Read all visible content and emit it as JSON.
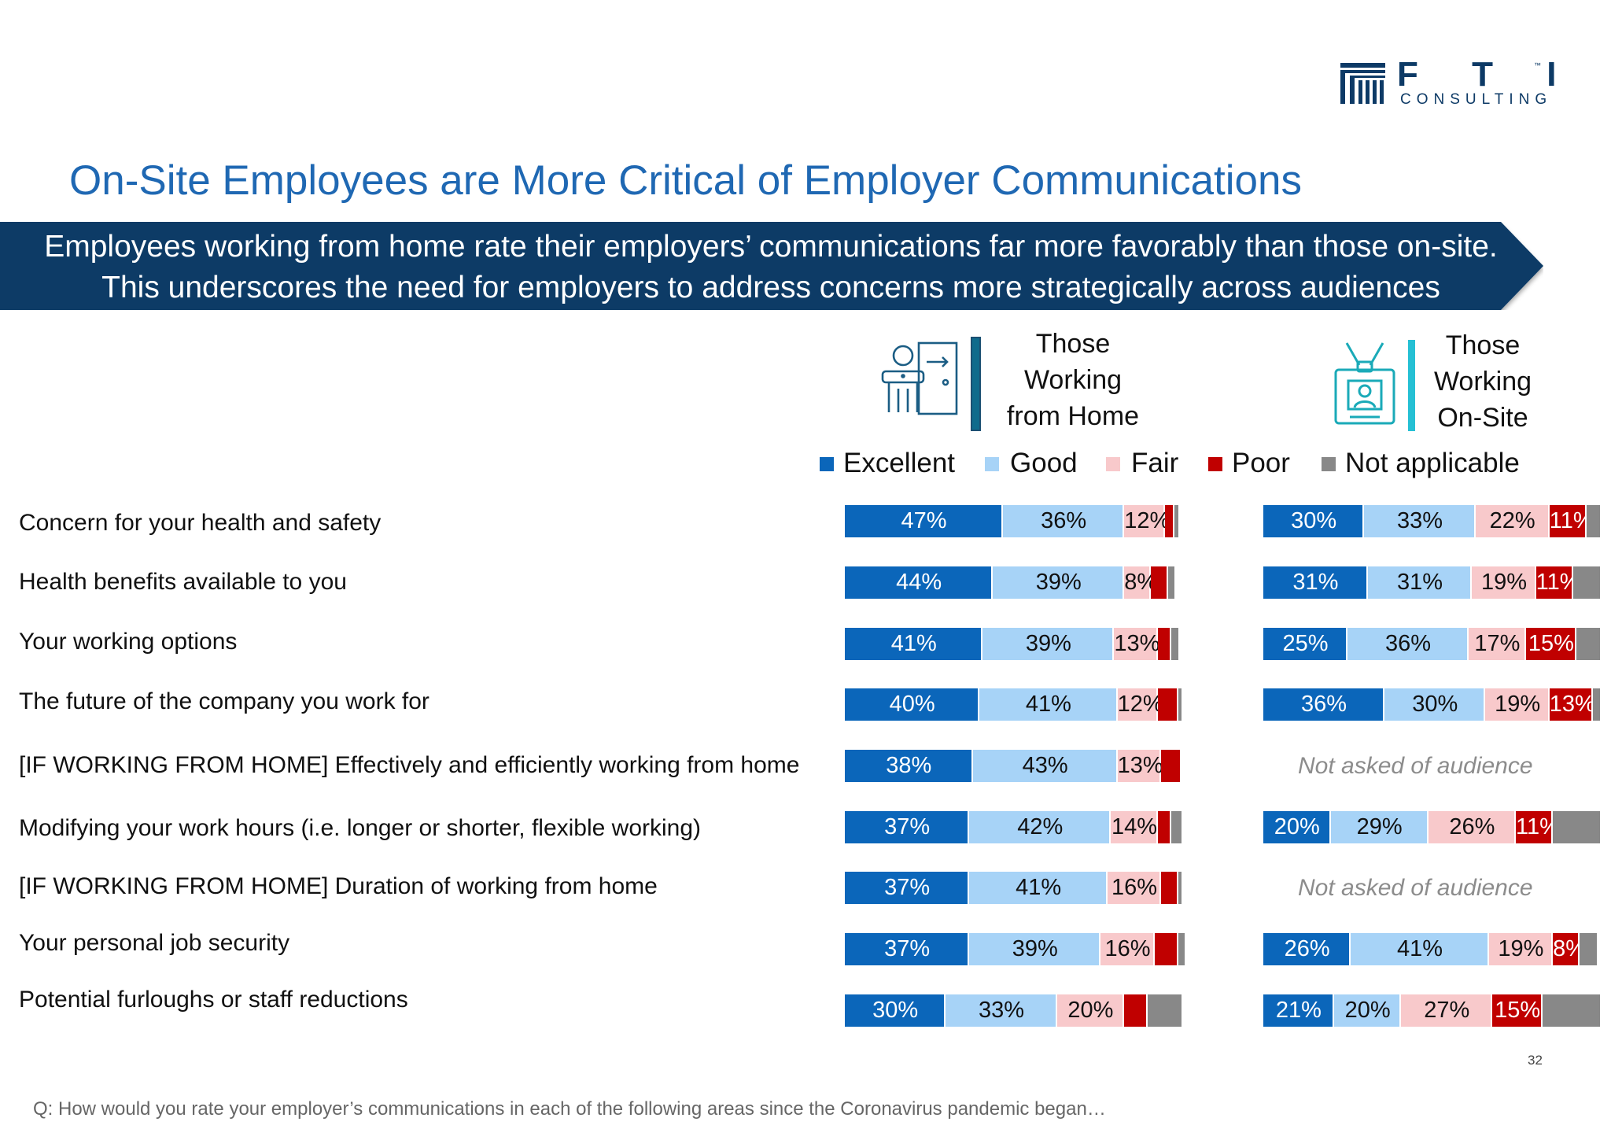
{
  "logo": {
    "letters": "F T I",
    "tm": "™",
    "sub": "CONSULTING"
  },
  "title": "On-Site Employees are More Critical of Employer Communications",
  "banner": "Employees working from home rate their employers’ communications far more favorably than those on-site. This underscores the need for employers to address concerns more strategically across audiences",
  "groups": {
    "home": {
      "label": "Those Working from Home",
      "accent": "#0f6b8c",
      "icon": "person-at-desk-icon"
    },
    "onsite": {
      "label": "Those Working On-Site",
      "accent": "#25c0d4",
      "icon": "id-badge-icon"
    }
  },
  "colors": {
    "Excellent": "#0b66ba",
    "Good": "#a7d3f7",
    "Fair": "#f8c9cb",
    "Poor": "#c00000",
    "Not applicable": "#888888"
  },
  "page_number": "32",
  "footnote": "Q: How would you rate your employer’s communications in each of the following areas since the Coronavirus pandemic began…",
  "chart_data": [
    {
      "type": "bar",
      "orientation": "horizontal",
      "stacked": true,
      "group": "Those Working from Home",
      "legend": [
        "Excellent",
        "Good",
        "Fair",
        "Poor",
        "Not applicable"
      ],
      "legend_position": "top",
      "xlim": [
        0,
        100
      ],
      "categories": [
        "Concern for your health and safety",
        "Health benefits available to you",
        "Your working options",
        "The future of the company you work for",
        "[IF WORKING FROM HOME] Effectively and efficiently working from home",
        "Modifying your work hours (i.e. longer or shorter, flexible working)",
        "[IF WORKING FROM HOME] Duration of working from home",
        "Your personal job security",
        "Potential furloughs or staff reductions"
      ],
      "labels": [
        [
          "47%",
          "36%",
          "12%",
          "",
          ""
        ],
        [
          "44%",
          "39%",
          "8%",
          "",
          ""
        ],
        [
          "41%",
          "39%",
          "13%",
          "",
          ""
        ],
        [
          "40%",
          "41%",
          "12%",
          "",
          ""
        ],
        [
          "38%",
          "43%",
          "13%",
          "",
          ""
        ],
        [
          "37%",
          "42%",
          "14%",
          "",
          ""
        ],
        [
          "37%",
          "41%",
          "16%",
          "",
          ""
        ],
        [
          "37%",
          "39%",
          "16%",
          "",
          ""
        ],
        [
          "30%",
          "33%",
          "20%",
          "",
          ""
        ]
      ],
      "values": [
        [
          47,
          36,
          12,
          3,
          1
        ],
        [
          44,
          39,
          8,
          5,
          2
        ],
        [
          41,
          39,
          13,
          4,
          2
        ],
        [
          40,
          41,
          12,
          6,
          1
        ],
        [
          38,
          43,
          13,
          6,
          0
        ],
        [
          37,
          42,
          14,
          4,
          3
        ],
        [
          37,
          41,
          16,
          5,
          1
        ],
        [
          37,
          39,
          16,
          7,
          2
        ],
        [
          30,
          33,
          20,
          7,
          10
        ]
      ]
    },
    {
      "type": "bar",
      "orientation": "horizontal",
      "stacked": true,
      "group": "Those Working On-Site",
      "legend": [
        "Excellent",
        "Good",
        "Fair",
        "Poor",
        "Not applicable"
      ],
      "legend_position": "top",
      "xlim": [
        0,
        100
      ],
      "not_asked_text": "Not asked of audience",
      "categories": [
        "Concern for your health and safety",
        "Health benefits available to you",
        "Your working options",
        "The future of the company you work for",
        "[IF WORKING FROM HOME] Effectively and efficiently working from home",
        "Modifying your work hours (i.e. longer or shorter, flexible working)",
        "[IF WORKING FROM HOME] Duration of working from home",
        "Your personal job security",
        "Potential furloughs or staff reductions"
      ],
      "labels": [
        [
          "30%",
          "33%",
          "22%",
          "11%",
          ""
        ],
        [
          "31%",
          "31%",
          "19%",
          "11%",
          ""
        ],
        [
          "25%",
          "36%",
          "17%",
          "15%",
          ""
        ],
        [
          "36%",
          "30%",
          "19%",
          "13%",
          ""
        ],
        null,
        [
          "20%",
          "29%",
          "26%",
          "11%",
          ""
        ],
        null,
        [
          "26%",
          "41%",
          "19%",
          "8%",
          ""
        ],
        [
          "21%",
          "20%",
          "27%",
          "15%",
          ""
        ]
      ],
      "values": [
        [
          30,
          33,
          22,
          11,
          4
        ],
        [
          31,
          31,
          19,
          11,
          8
        ],
        [
          25,
          36,
          17,
          15,
          7
        ],
        [
          36,
          30,
          19,
          13,
          2
        ],
        null,
        [
          20,
          29,
          26,
          11,
          14
        ],
        null,
        [
          26,
          41,
          19,
          8,
          5
        ],
        [
          21,
          20,
          27,
          15,
          17
        ]
      ]
    }
  ]
}
